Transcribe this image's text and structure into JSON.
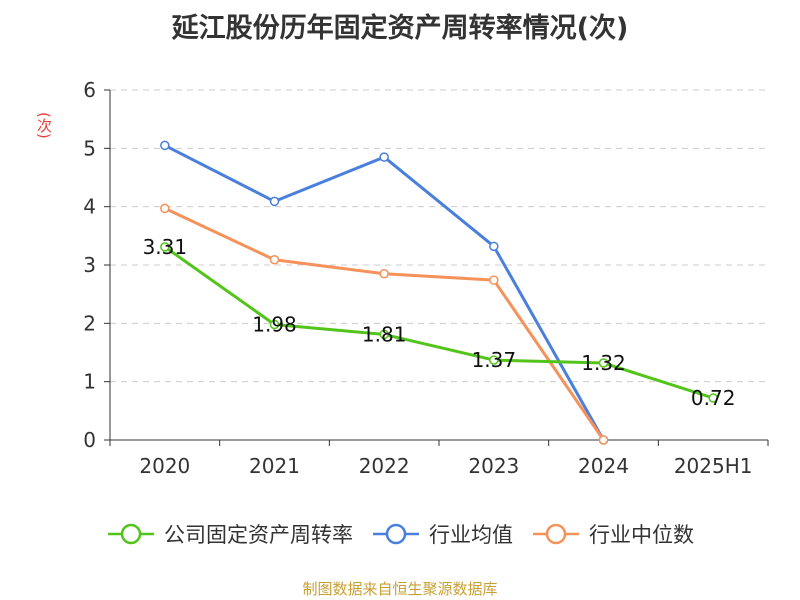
{
  "chart_data": {
    "type": "line",
    "title": "延江股份历年固定资产周转率情况(次)",
    "ylabel": "(次)",
    "xlabel": "",
    "categories": [
      "2020",
      "2021",
      "2022",
      "2023",
      "2024",
      "2025H1"
    ],
    "ylim": [
      0,
      6
    ],
    "yticks": [
      "0",
      "1",
      "2",
      "3",
      "4",
      "5",
      "6"
    ],
    "grid": true,
    "legend_position": "bottom",
    "series": [
      {
        "name": "公司固定资产周转率",
        "color": "#52c41a",
        "values": [
          3.31,
          1.98,
          1.81,
          1.37,
          1.32,
          0.72
        ],
        "labels": [
          "3.31",
          "1.98",
          "1.81",
          "1.37",
          "1.32",
          "0.72"
        ]
      },
      {
        "name": "行业均值",
        "color": "#4a7fdc",
        "values": [
          5.05,
          4.09,
          4.85,
          3.32,
          0.0,
          null
        ]
      },
      {
        "name": "行业中位数",
        "color": "#f5925a",
        "values": [
          3.97,
          3.09,
          2.85,
          2.74,
          0.0,
          null
        ]
      }
    ],
    "source": "制图数据来自恒生聚源数据库"
  }
}
